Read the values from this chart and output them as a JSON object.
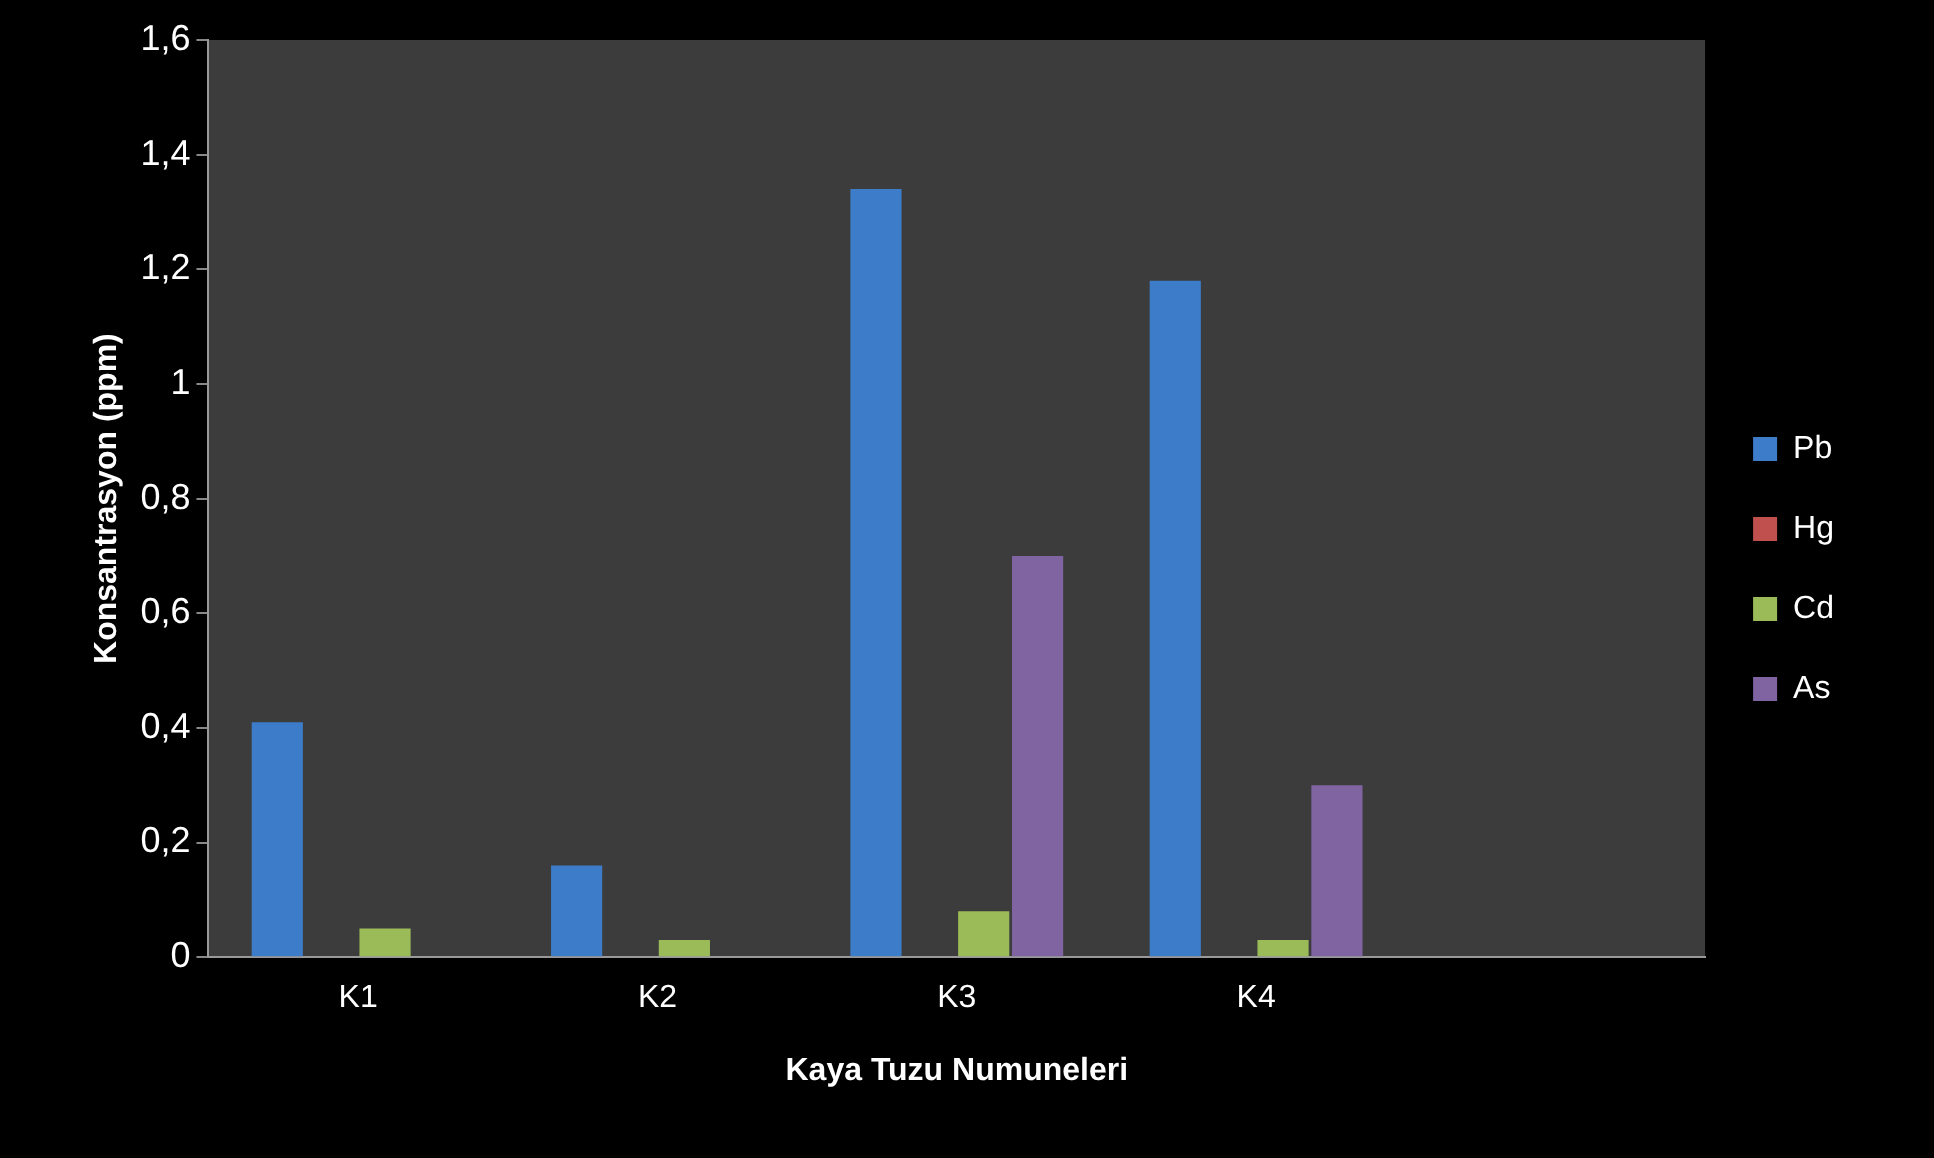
{
  "chart_data": {
    "type": "bar",
    "xlabel": "Kaya Tuzu Numuneleri",
    "ylabel": "Konsantrasyon (ppm)",
    "categories": [
      "K1",
      "K2",
      "K3",
      "K4",
      null
    ],
    "series": [
      {
        "name": "Pb",
        "color": "#3d7cc9",
        "values": [
          0.41,
          0.16,
          1.34,
          1.18,
          null
        ]
      },
      {
        "name": "Hg",
        "color": "#c0504d",
        "values": [
          0,
          0,
          0,
          0,
          null
        ]
      },
      {
        "name": "Cd",
        "color": "#9bbb59",
        "values": [
          0.05,
          0.03,
          0.08,
          0.03,
          null
        ]
      },
      {
        "name": "As",
        "color": "#8064a2",
        "values": [
          0,
          0,
          0.7,
          0.3,
          null
        ]
      }
    ],
    "ylim": [
      0,
      1.6
    ],
    "yticks": [
      0,
      {
        "value": 0.2,
        "label": "0,2"
      },
      {
        "value": 0.4,
        "label": "0,4"
      },
      {
        "value": 0.6,
        "label": "0,6"
      },
      {
        "value": 0.8,
        "label": "0,8"
      },
      1,
      {
        "value": 1.2,
        "label": "1,2"
      },
      {
        "value": 1.4,
        "label": "1,4"
      },
      {
        "value": 1.6,
        "label": "1,6"
      }
    ],
    "grid": false,
    "legend": "right"
  }
}
